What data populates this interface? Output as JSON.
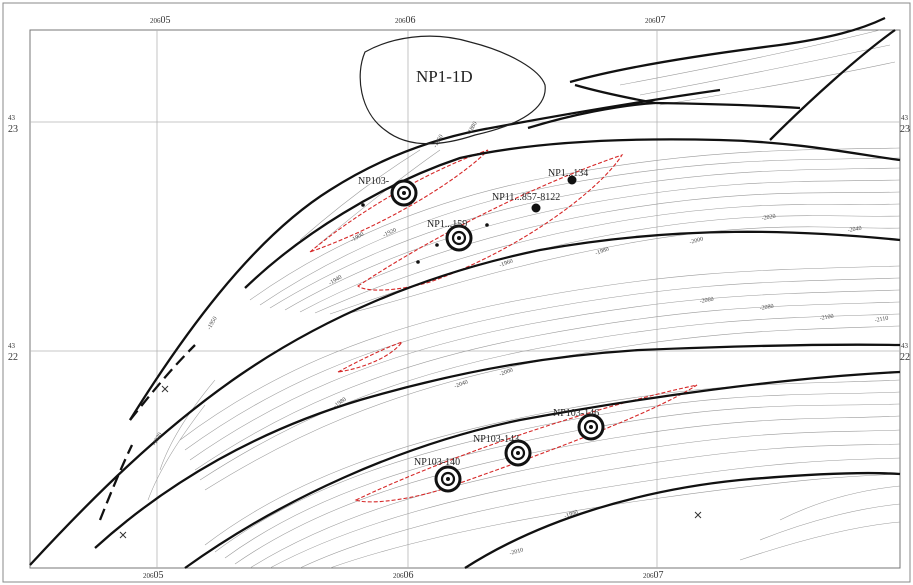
{
  "map": {
    "area_label": "NP1-1D",
    "x_ticks_top": [
      {
        "prefix": "206",
        "value": "05"
      },
      {
        "prefix": "206",
        "value": "06"
      },
      {
        "prefix": "206",
        "value": "07"
      }
    ],
    "x_ticks_bottom": [
      {
        "prefix": "206",
        "value": "05"
      },
      {
        "prefix": "206",
        "value": "06"
      },
      {
        "prefix": "206",
        "value": "07"
      }
    ],
    "y_ticks": [
      {
        "prefix": "43",
        "value": "23"
      },
      {
        "prefix": "43",
        "value": "22"
      }
    ],
    "wells": [
      {
        "label": "NP103-",
        "kind": "target"
      },
      {
        "label": "NP1...159",
        "kind": "target"
      },
      {
        "label": "NP1...134",
        "kind": "existing"
      },
      {
        "label": "NP11...857-8122",
        "kind": "existing"
      },
      {
        "label": "NP103-146",
        "kind": "target"
      },
      {
        "label": "NP103-143",
        "kind": "target"
      },
      {
        "label": "NP103-140",
        "kind": "target"
      }
    ],
    "contour_labels": [
      "-1860",
      "-1880",
      "-1900",
      "-1920",
      "-1940",
      "-1960",
      "-1980",
      "-2000",
      "-2020",
      "-2040",
      "-2060",
      "-2080",
      "-2100",
      "-2110",
      "-1920",
      "-1950",
      "-1980",
      "-2040",
      "-2000",
      "-1990",
      "-2010"
    ]
  }
}
